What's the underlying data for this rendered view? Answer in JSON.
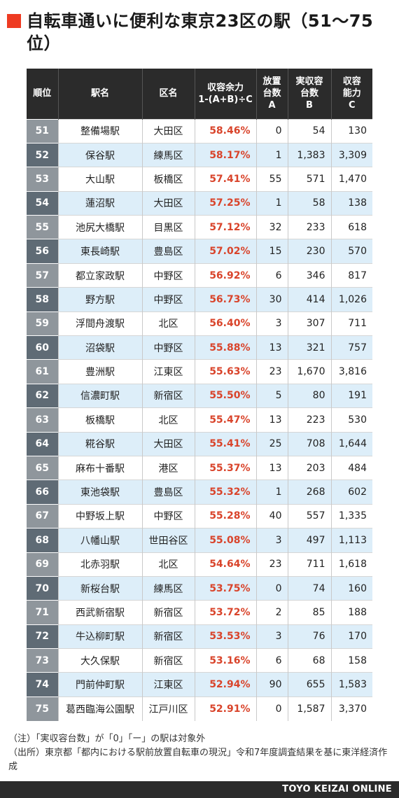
{
  "header": {
    "title": "自転車通いに便利な東京23区の駅（51〜75位）",
    "accent_color": "#ee3b22"
  },
  "table": {
    "columns": {
      "rank": "順位",
      "station": "駅名",
      "ward": "区名",
      "ratio_line1": "収容余力",
      "ratio_line2": "1-(A+B)÷C",
      "a_line1": "放置",
      "a_line2": "台数",
      "a_line3": "A",
      "b_line1": "実収容",
      "b_line2": "台数",
      "b_line3": "B",
      "c_line1": "収容",
      "c_line2": "能力",
      "c_line3": "C"
    },
    "rows": [
      {
        "rank": "51",
        "station": "整備場駅",
        "ward": "大田区",
        "ratio": "58.46%",
        "a": "0",
        "b": "54",
        "c": "130"
      },
      {
        "rank": "52",
        "station": "保谷駅",
        "ward": "練馬区",
        "ratio": "58.17%",
        "a": "1",
        "b": "1,383",
        "c": "3,309"
      },
      {
        "rank": "53",
        "station": "大山駅",
        "ward": "板橋区",
        "ratio": "57.41%",
        "a": "55",
        "b": "571",
        "c": "1,470"
      },
      {
        "rank": "54",
        "station": "蓮沼駅",
        "ward": "大田区",
        "ratio": "57.25%",
        "a": "1",
        "b": "58",
        "c": "138"
      },
      {
        "rank": "55",
        "station": "池尻大橋駅",
        "ward": "目黒区",
        "ratio": "57.12%",
        "a": "32",
        "b": "233",
        "c": "618"
      },
      {
        "rank": "56",
        "station": "東長崎駅",
        "ward": "豊島区",
        "ratio": "57.02%",
        "a": "15",
        "b": "230",
        "c": "570"
      },
      {
        "rank": "57",
        "station": "都立家政駅",
        "ward": "中野区",
        "ratio": "56.92%",
        "a": "6",
        "b": "346",
        "c": "817"
      },
      {
        "rank": "58",
        "station": "野方駅",
        "ward": "中野区",
        "ratio": "56.73%",
        "a": "30",
        "b": "414",
        "c": "1,026"
      },
      {
        "rank": "59",
        "station": "浮間舟渡駅",
        "ward": "北区",
        "ratio": "56.40%",
        "a": "3",
        "b": "307",
        "c": "711"
      },
      {
        "rank": "60",
        "station": "沼袋駅",
        "ward": "中野区",
        "ratio": "55.88%",
        "a": "13",
        "b": "321",
        "c": "757"
      },
      {
        "rank": "61",
        "station": "豊洲駅",
        "ward": "江東区",
        "ratio": "55.63%",
        "a": "23",
        "b": "1,670",
        "c": "3,816"
      },
      {
        "rank": "62",
        "station": "信濃町駅",
        "ward": "新宿区",
        "ratio": "55.50%",
        "a": "5",
        "b": "80",
        "c": "191"
      },
      {
        "rank": "63",
        "station": "板橋駅",
        "ward": "北区",
        "ratio": "55.47%",
        "a": "13",
        "b": "223",
        "c": "530"
      },
      {
        "rank": "64",
        "station": "糀谷駅",
        "ward": "大田区",
        "ratio": "55.41%",
        "a": "25",
        "b": "708",
        "c": "1,644"
      },
      {
        "rank": "65",
        "station": "麻布十番駅",
        "ward": "港区",
        "ratio": "55.37%",
        "a": "13",
        "b": "203",
        "c": "484"
      },
      {
        "rank": "66",
        "station": "東池袋駅",
        "ward": "豊島区",
        "ratio": "55.32%",
        "a": "1",
        "b": "268",
        "c": "602"
      },
      {
        "rank": "67",
        "station": "中野坂上駅",
        "ward": "中野区",
        "ratio": "55.28%",
        "a": "40",
        "b": "557",
        "c": "1,335"
      },
      {
        "rank": "68",
        "station": "八幡山駅",
        "ward": "世田谷区",
        "ratio": "55.08%",
        "a": "3",
        "b": "497",
        "c": "1,113"
      },
      {
        "rank": "69",
        "station": "北赤羽駅",
        "ward": "北区",
        "ratio": "54.64%",
        "a": "23",
        "b": "711",
        "c": "1,618"
      },
      {
        "rank": "70",
        "station": "新桜台駅",
        "ward": "練馬区",
        "ratio": "53.75%",
        "a": "0",
        "b": "74",
        "c": "160"
      },
      {
        "rank": "71",
        "station": "西武新宿駅",
        "ward": "新宿区",
        "ratio": "53.72%",
        "a": "2",
        "b": "85",
        "c": "188"
      },
      {
        "rank": "72",
        "station": "牛込柳町駅",
        "ward": "新宿区",
        "ratio": "53.53%",
        "a": "3",
        "b": "76",
        "c": "170"
      },
      {
        "rank": "73",
        "station": "大久保駅",
        "ward": "新宿区",
        "ratio": "53.16%",
        "a": "6",
        "b": "68",
        "c": "158"
      },
      {
        "rank": "74",
        "station": "門前仲町駅",
        "ward": "江東区",
        "ratio": "52.94%",
        "a": "90",
        "b": "655",
        "c": "1,583"
      },
      {
        "rank": "75",
        "station": "葛西臨海公園駅",
        "ward": "江戸川区",
        "ratio": "52.91%",
        "a": "0",
        "b": "1,587",
        "c": "3,370"
      }
    ],
    "colors": {
      "header_bg": "#2b2b2b",
      "stripe": "#ddeef9",
      "rank_light": "#8f969c",
      "rank_dark": "#5f6b75",
      "percent_text": "#d9442b"
    }
  },
  "notes": {
    "line1": "（注）「実収容台数」が「0」「ー」の駅は対象外",
    "line2": "（出所）東京都「都内における駅前放置自転車の現況」令和7年度調査結果を基に東洋経済作成"
  },
  "footer": {
    "brand": "TOYO KEIZAI ONLINE"
  }
}
